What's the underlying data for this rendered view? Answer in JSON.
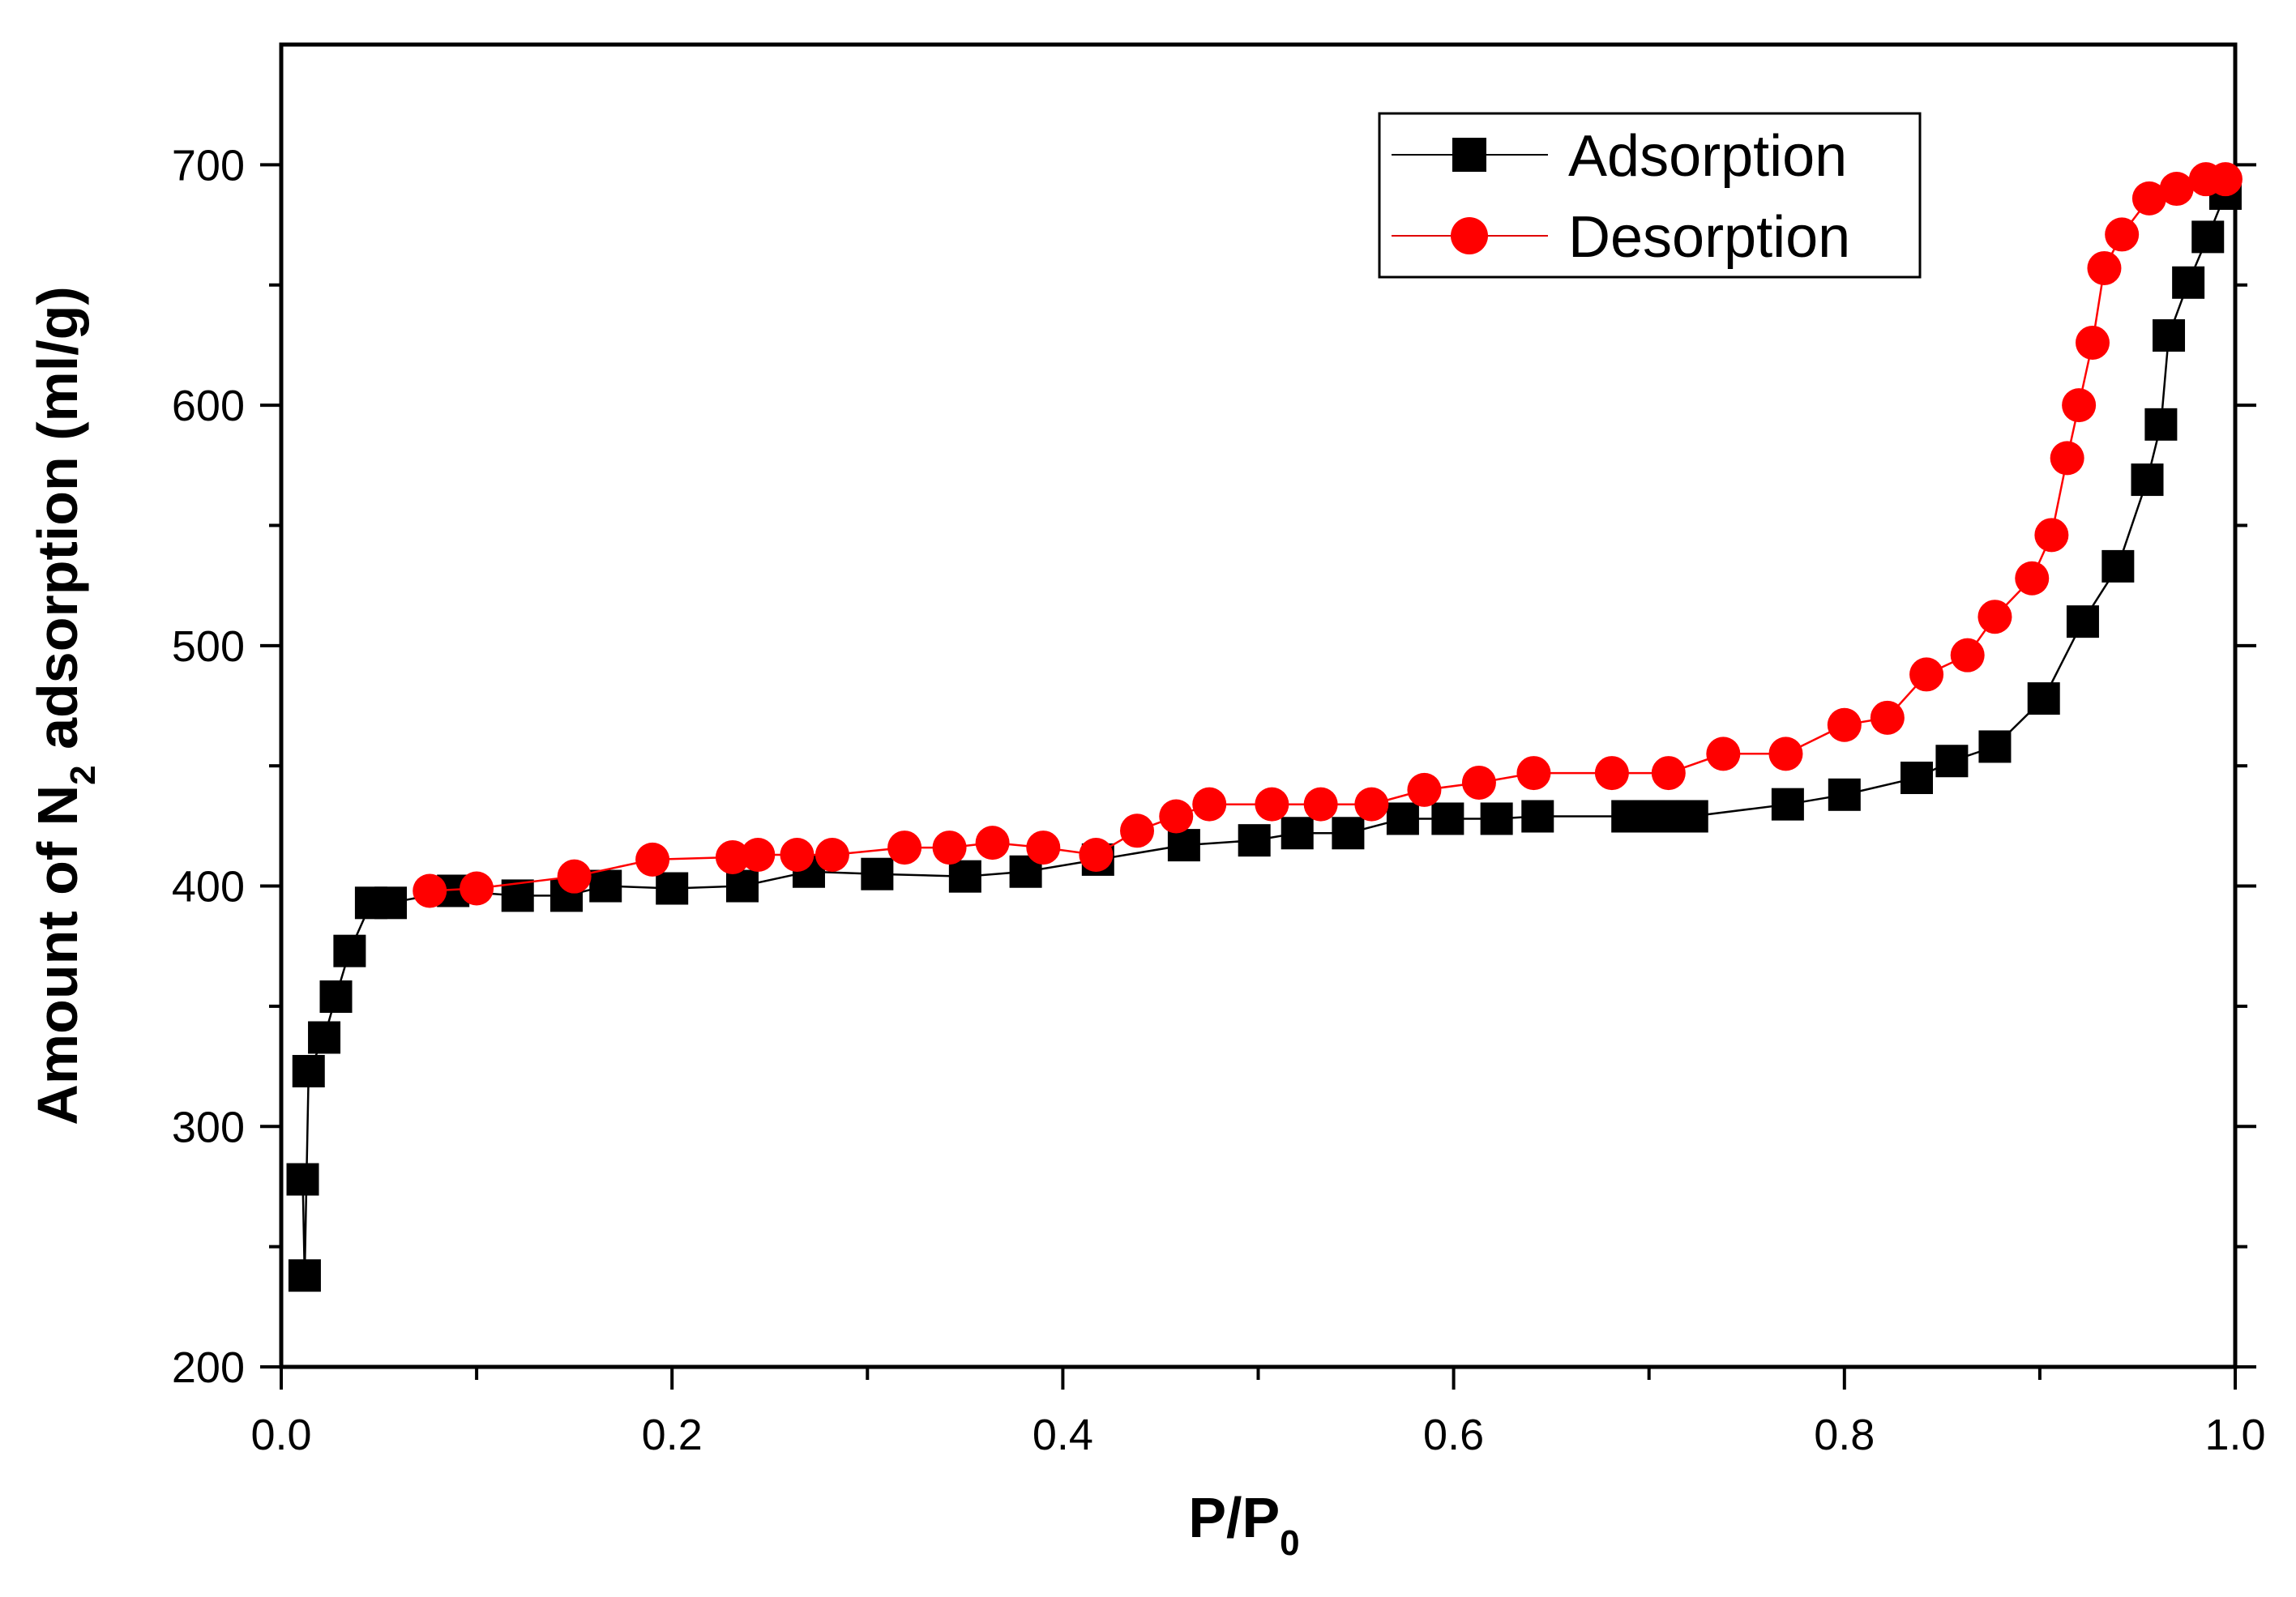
{
  "chart_data": {
    "type": "scatter",
    "title": "",
    "xlabel": "P/P",
    "xlabel_sub": "0",
    "ylabel_prefix": "Amount of N",
    "ylabel_sub": "2",
    "ylabel_suffix": " adsorption (ml/g)",
    "xlim": [
      0.0,
      1.0
    ],
    "ylim": [
      200,
      750
    ],
    "xticks": [
      "0.0",
      "0.2",
      "0.4",
      "0.6",
      "0.8",
      "1.0"
    ],
    "yticks": [
      "200",
      "300",
      "400",
      "500",
      "600",
      "700"
    ],
    "legend_position": "top-right",
    "series": [
      {
        "name": "Adsorption",
        "color": "#000000",
        "marker": "square",
        "x": [
          0.011,
          0.012,
          0.014,
          0.022,
          0.028,
          0.035,
          0.046,
          0.056,
          0.088,
          0.121,
          0.146,
          0.166,
          0.2,
          0.236,
          0.27,
          0.305,
          0.35,
          0.381,
          0.418,
          0.462,
          0.498,
          0.52,
          0.546,
          0.574,
          0.597,
          0.622,
          0.643,
          0.689,
          0.7,
          0.712,
          0.722,
          0.771,
          0.8,
          0.837,
          0.855,
          0.877,
          0.902,
          0.922,
          0.94,
          0.955,
          0.962,
          0.966,
          0.976,
          0.986,
          0.995
        ],
        "y": [
          278,
          238,
          323,
          337,
          354,
          373,
          393,
          393,
          398,
          396,
          396,
          400,
          399,
          400,
          406,
          405,
          404,
          406,
          411,
          417,
          419,
          422,
          422,
          428,
          428,
          428,
          429,
          429,
          429,
          429,
          429,
          434,
          438,
          445,
          452,
          458,
          478,
          510,
          533,
          569,
          592,
          629,
          651,
          670,
          688
        ]
      },
      {
        "name": "Desorption",
        "color": "#ff0000",
        "marker": "circle",
        "x": [
          0.076,
          0.1,
          0.15,
          0.19,
          0.231,
          0.244,
          0.264,
          0.282,
          0.319,
          0.342,
          0.364,
          0.39,
          0.417,
          0.438,
          0.458,
          0.475,
          0.507,
          0.532,
          0.558,
          0.585,
          0.613,
          0.641,
          0.681,
          0.71,
          0.738,
          0.77,
          0.8,
          0.822,
          0.842,
          0.863,
          0.877,
          0.896,
          0.906,
          0.914,
          0.92,
          0.927,
          0.933,
          0.942,
          0.956,
          0.97,
          0.985,
          0.995
        ],
        "y": [
          398,
          399,
          404,
          411,
          412,
          413,
          413,
          413,
          416,
          416,
          418,
          416,
          413,
          423,
          429,
          434,
          434,
          434,
          434,
          440,
          443,
          447,
          447,
          447,
          455,
          455,
          467,
          470,
          488,
          496,
          512,
          528,
          546,
          578,
          600,
          626,
          657,
          671,
          686,
          690,
          694,
          694
        ]
      }
    ]
  }
}
